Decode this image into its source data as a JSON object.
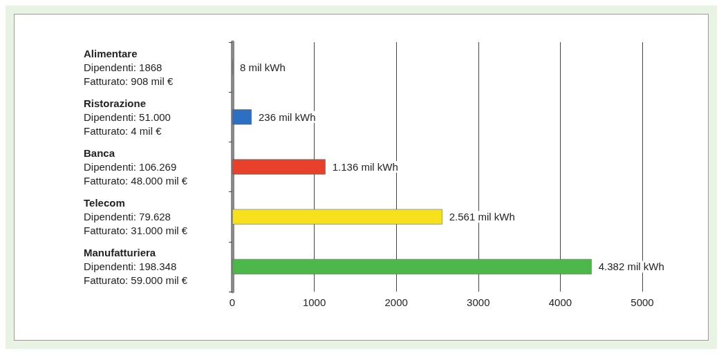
{
  "chart_data": {
    "type": "bar",
    "orientation": "horizontal",
    "categories": [
      "Alimentare\nDipendenti: 1868\nFatturato: 908 mil €",
      "Ristorazione\nDipendenti: 51.000\nFatturato: 4 mil €",
      "Banca\nDipendenti: 106.269\nFatturato: 48.000 mil €",
      "Telecom\nDipendenti: 79.628\nFatturato: 31.000 mil €",
      "Manufatturiera\nDipendenti: 198.348\nFatturato: 59.000 mil €"
    ],
    "values": [
      8,
      236,
      1136,
      2561,
      4382
    ],
    "colors": [
      "#9fd6cf",
      "#2d6fc2",
      "#e8412b",
      "#f7e11c",
      "#4cb84a"
    ],
    "value_labels": [
      "8 mil kWh",
      "236 mil kWh",
      "1.136 mil kWh",
      "2.561 mil kWh",
      "4.382 mil kWh"
    ],
    "xlim": [
      0,
      5000
    ],
    "xticks": [
      0,
      1000,
      2000,
      3000,
      4000,
      5000
    ],
    "grid": "x"
  }
}
